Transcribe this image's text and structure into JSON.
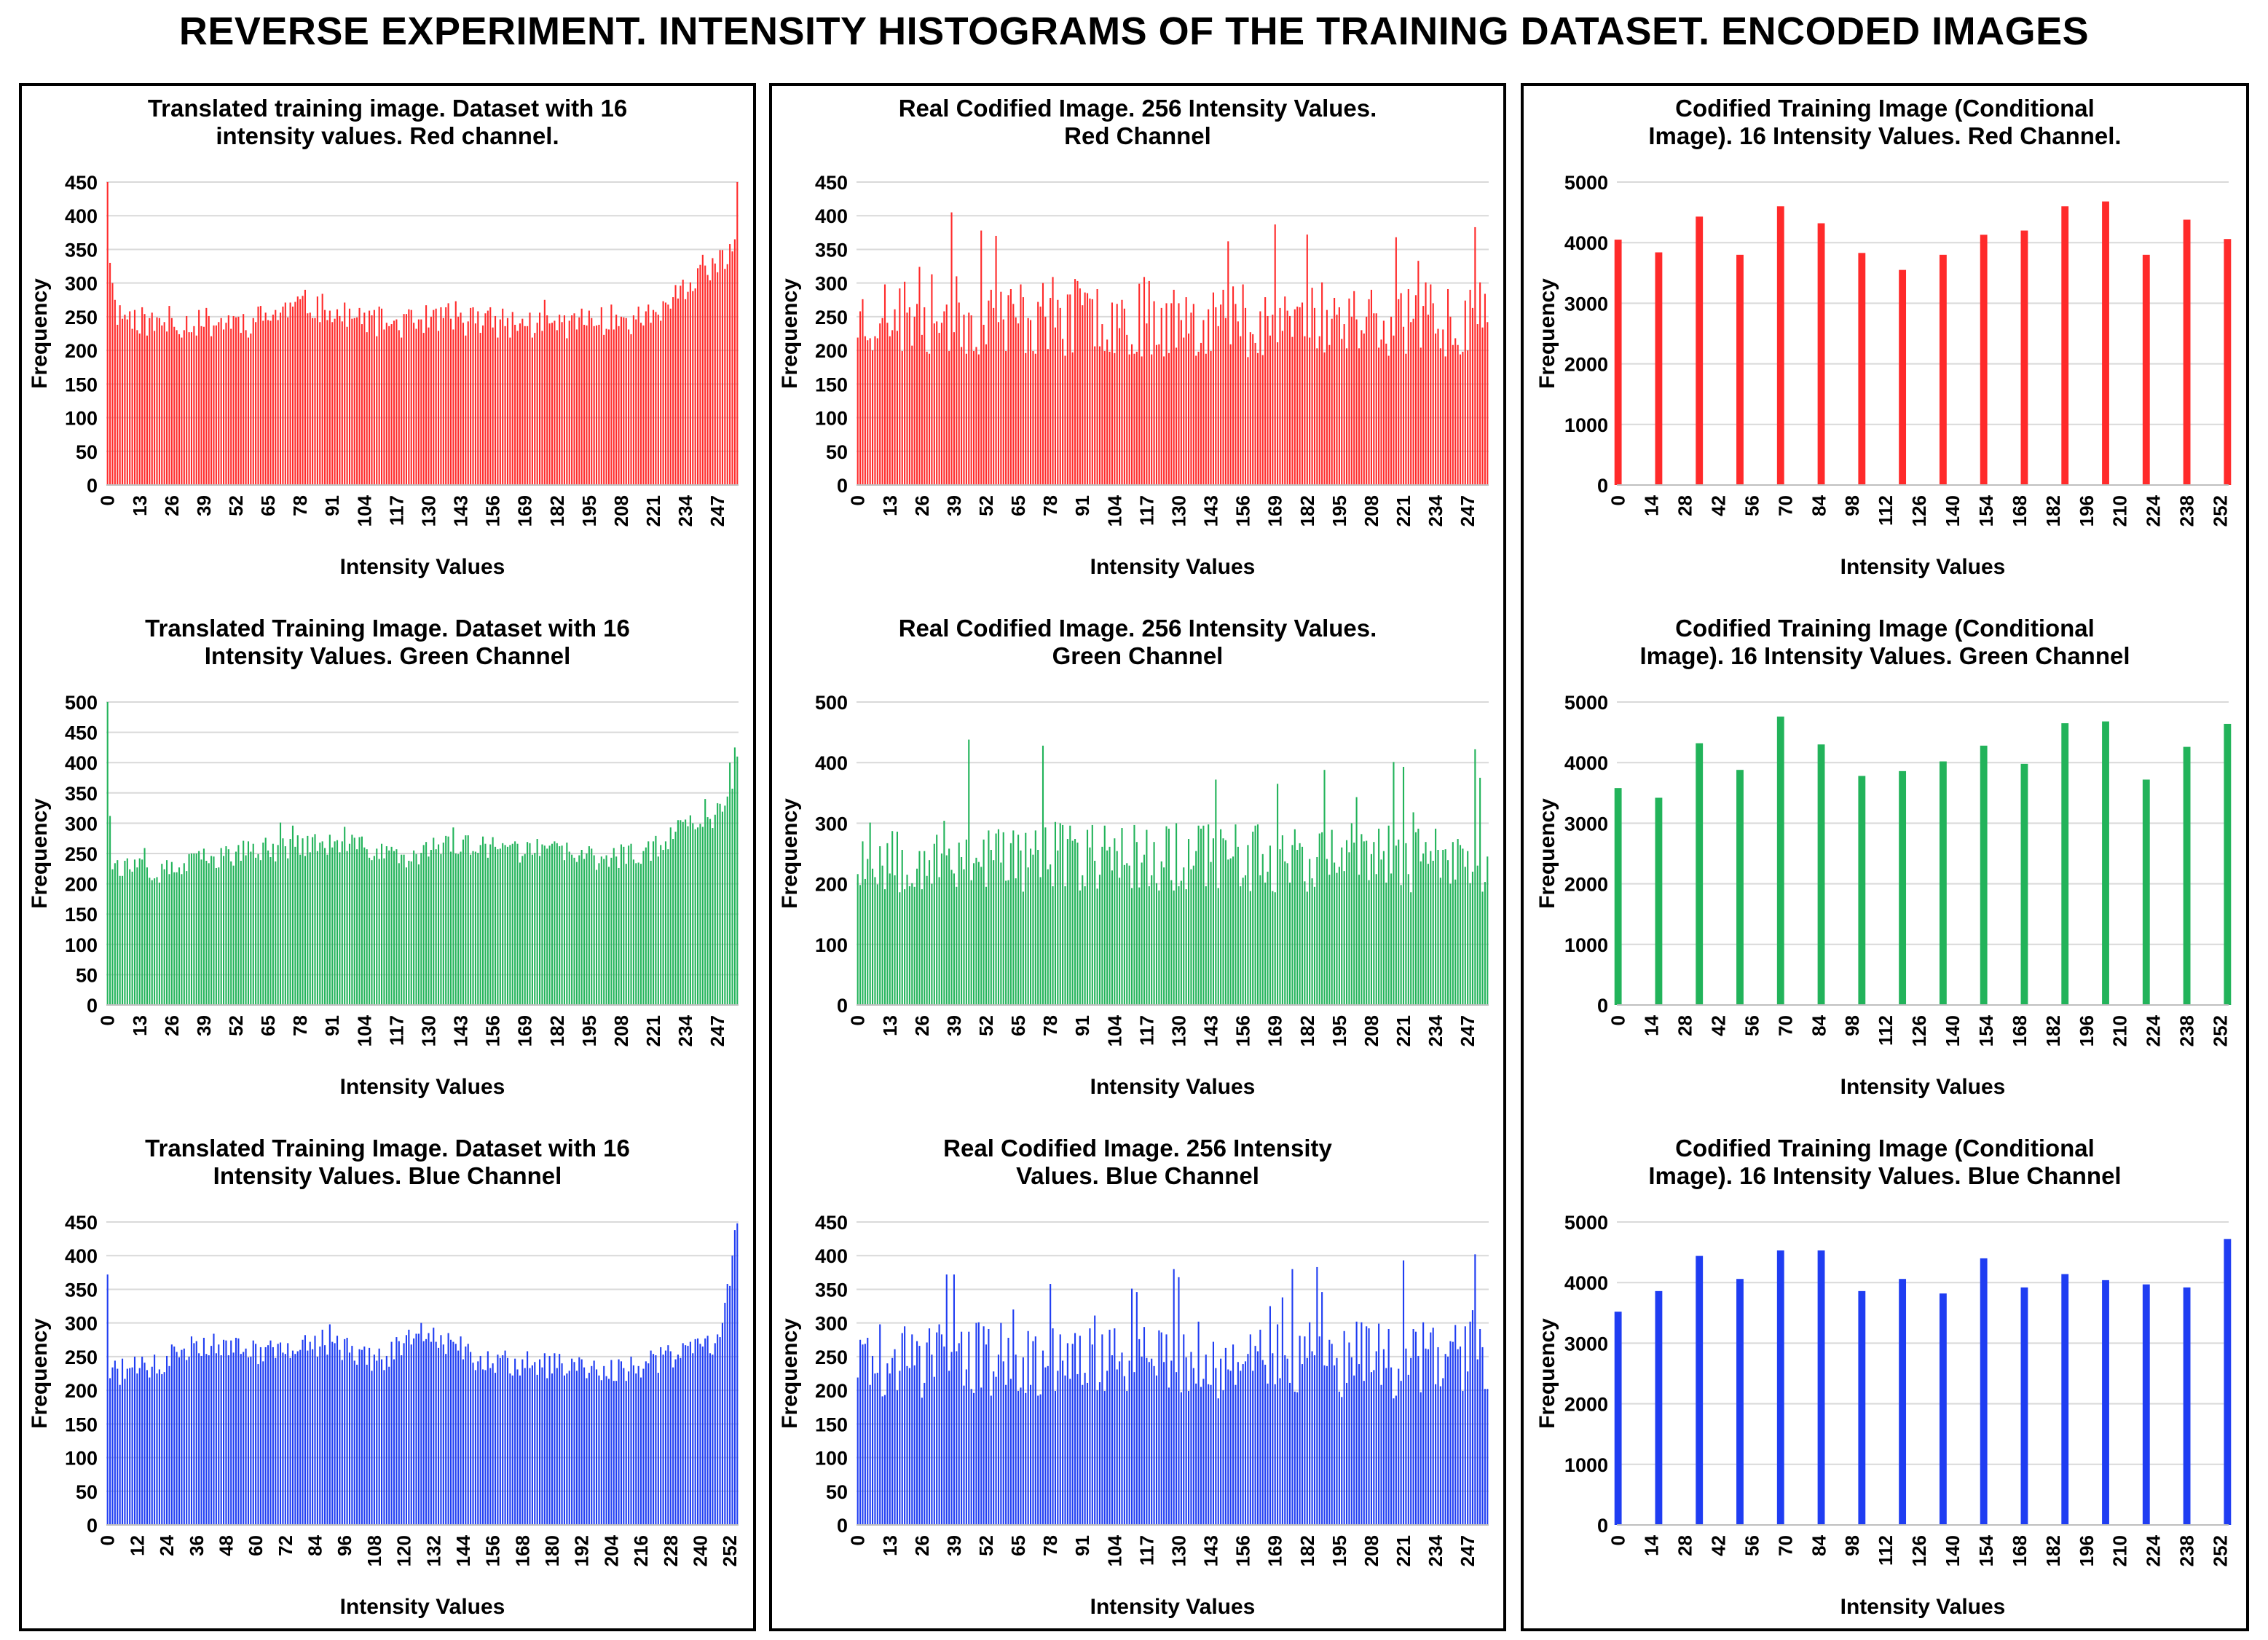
{
  "page_title": "REVERSE EXPERIMENT. INTENSITY HISTOGRAMS OF THE TRAINING DATASET. ENCODED IMAGES",
  "colors": {
    "red": "#ff2a2a",
    "green": "#22b35a",
    "blue": "#1f3df2",
    "grid": "#d9d9d9",
    "frame": "#000000"
  },
  "chart_data": [
    {
      "id": "red-16",
      "type": "bar",
      "color": "red",
      "title": [
        "Translated training image. Dataset with 16",
        "intensity values. Red channel."
      ],
      "xlabel": "Intensity Values",
      "ylabel": "Frequency",
      "ylim": [
        0,
        450
      ],
      "yticks": [
        0,
        50,
        100,
        150,
        200,
        250,
        300,
        350,
        400,
        450
      ],
      "xticks": [
        0,
        13,
        26,
        39,
        52,
        65,
        78,
        91,
        104,
        117,
        130,
        143,
        156,
        169,
        182,
        195,
        208,
        221,
        234,
        247
      ],
      "x_start": 0,
      "x_count": 256,
      "trend": [
        [
          0,
          260
        ],
        [
          20,
          238
        ],
        [
          40,
          242
        ],
        [
          60,
          245
        ],
        [
          80,
          268
        ],
        [
          100,
          245
        ],
        [
          120,
          240
        ],
        [
          140,
          252
        ],
        [
          160,
          240
        ],
        [
          180,
          238
        ],
        [
          200,
          245
        ],
        [
          220,
          250
        ],
        [
          235,
          290
        ],
        [
          245,
          320
        ],
        [
          255,
          350
        ]
      ],
      "spread": 45,
      "seed": 11,
      "overrides": [
        [
          0,
          450
        ],
        [
          1,
          330
        ],
        [
          2,
          300
        ],
        [
          3,
          275
        ],
        [
          254,
          365
        ],
        [
          255,
          450
        ]
      ]
    },
    {
      "id": "red-256",
      "type": "bar",
      "color": "red",
      "title": [
        "Real Codified Image. 256 Intensity Values.",
        "Red Channel"
      ],
      "xlabel": "Intensity Values",
      "ylabel": "Frequency",
      "ylim": [
        0,
        450
      ],
      "yticks": [
        0,
        50,
        100,
        150,
        200,
        250,
        300,
        350,
        400,
        450
      ],
      "xticks": [
        0,
        13,
        26,
        39,
        52,
        65,
        78,
        91,
        104,
        117,
        130,
        143,
        156,
        169,
        182,
        195,
        208,
        221,
        234,
        247
      ],
      "x_start": 0,
      "x_count": 256,
      "trend": [
        [
          0,
          250
        ],
        [
          255,
          250
        ]
      ],
      "spread": 120,
      "seed": 23,
      "overrides": [
        [
          38,
          405
        ],
        [
          50,
          378
        ],
        [
          150,
          362
        ],
        [
          182,
          372
        ],
        [
          218,
          368
        ],
        [
          250,
          383
        ]
      ]
    },
    {
      "id": "red-cond",
      "type": "bar",
      "color": "red",
      "title": [
        "Codified Training Image (Conditional",
        "Image). 16 Intensity Values. Red Channel."
      ],
      "xlabel": "Intensity Values",
      "ylabel": "Frequency",
      "ylim": [
        0,
        5000
      ],
      "yticks": [
        0,
        1000,
        2000,
        3000,
        4000,
        5000
      ],
      "xticks": [
        0,
        14,
        28,
        42,
        56,
        70,
        84,
        98,
        112,
        126,
        140,
        154,
        168,
        182,
        196,
        210,
        224,
        238,
        252
      ],
      "x_start": 0,
      "x_count": 256,
      "points": [
        [
          0,
          4050
        ],
        [
          17,
          3840
        ],
        [
          34,
          4430
        ],
        [
          51,
          3800
        ],
        [
          68,
          4600
        ],
        [
          85,
          4320
        ],
        [
          102,
          3830
        ],
        [
          119,
          3550
        ],
        [
          136,
          3800
        ],
        [
          153,
          4130
        ],
        [
          170,
          4200
        ],
        [
          187,
          4600
        ],
        [
          204,
          4680
        ],
        [
          221,
          3800
        ],
        [
          238,
          4380
        ],
        [
          255,
          4060
        ]
      ]
    },
    {
      "id": "green-16",
      "type": "bar",
      "color": "green",
      "title": [
        "Translated Training Image. Dataset with 16",
        "Intensity Values. Green Channel"
      ],
      "xlabel": "Intensity Values",
      "ylabel": "Frequency",
      "ylim": [
        0,
        500
      ],
      "yticks": [
        0,
        50,
        100,
        150,
        200,
        250,
        300,
        350,
        400,
        450,
        500
      ],
      "xticks": [
        0,
        13,
        26,
        39,
        52,
        65,
        78,
        91,
        104,
        117,
        130,
        143,
        156,
        169,
        182,
        195,
        208,
        221,
        234,
        247
      ],
      "x_start": 0,
      "x_count": 256,
      "trend": [
        [
          0,
          235
        ],
        [
          20,
          215
        ],
        [
          40,
          240
        ],
        [
          60,
          255
        ],
        [
          80,
          265
        ],
        [
          100,
          262
        ],
        [
          120,
          245
        ],
        [
          140,
          265
        ],
        [
          160,
          255
        ],
        [
          180,
          255
        ],
        [
          200,
          240
        ],
        [
          220,
          255
        ],
        [
          235,
          300
        ],
        [
          245,
          310
        ],
        [
          255,
          380
        ]
      ],
      "spread": 40,
      "seed": 37,
      "overrides": [
        [
          0,
          500
        ],
        [
          1,
          312
        ],
        [
          242,
          340
        ],
        [
          252,
          400
        ],
        [
          254,
          425
        ],
        [
          255,
          410
        ]
      ]
    },
    {
      "id": "green-256",
      "type": "bar",
      "color": "green",
      "title": [
        "Real Codified  Image. 256 Intensity Values.",
        "Green Channel"
      ],
      "xlabel": "Intensity Values",
      "ylabel": "Frequency",
      "ylim": [
        0,
        500
      ],
      "yticks": [
        0,
        100,
        200,
        300,
        400,
        500
      ],
      "xticks": [
        0,
        13,
        26,
        39,
        52,
        65,
        78,
        91,
        104,
        117,
        130,
        143,
        156,
        169,
        182,
        195,
        208,
        221,
        234,
        247
      ],
      "x_start": 0,
      "x_count": 256,
      "trend": [
        [
          0,
          245
        ],
        [
          255,
          245
        ]
      ],
      "spread": 120,
      "seed": 53,
      "overrides": [
        [
          45,
          438
        ],
        [
          75,
          428
        ],
        [
          145,
          372
        ],
        [
          170,
          365
        ],
        [
          189,
          388
        ],
        [
          221,
          393
        ],
        [
          250,
          422
        ]
      ]
    },
    {
      "id": "green-cond",
      "type": "bar",
      "color": "green",
      "title": [
        "Codified Training Image (Conditional",
        "Image). 16 Intensity Values. Green Channel"
      ],
      "xlabel": "Intensity Values",
      "ylabel": "Frequency",
      "ylim": [
        0,
        5000
      ],
      "yticks": [
        0,
        1000,
        2000,
        3000,
        4000,
        5000
      ],
      "xticks": [
        0,
        14,
        28,
        42,
        56,
        70,
        84,
        98,
        112,
        126,
        140,
        154,
        168,
        182,
        196,
        210,
        224,
        238,
        252
      ],
      "x_start": 0,
      "x_count": 256,
      "points": [
        [
          0,
          3580
        ],
        [
          17,
          3420
        ],
        [
          34,
          4320
        ],
        [
          51,
          3880
        ],
        [
          68,
          4760
        ],
        [
          85,
          4300
        ],
        [
          102,
          3780
        ],
        [
          119,
          3860
        ],
        [
          136,
          4020
        ],
        [
          153,
          4280
        ],
        [
          170,
          3980
        ],
        [
          187,
          4650
        ],
        [
          204,
          4680
        ],
        [
          221,
          3720
        ],
        [
          238,
          4260
        ],
        [
          255,
          4640
        ]
      ]
    },
    {
      "id": "blue-16",
      "type": "bar",
      "color": "blue",
      "title": [
        "Translated Training Image. Dataset with 16",
        "Intensity Values. Blue Channel"
      ],
      "xlabel": "Intensity Values",
      "ylabel": "Frequency",
      "ylim": [
        0,
        450
      ],
      "yticks": [
        0,
        50,
        100,
        150,
        200,
        250,
        300,
        350,
        400,
        450
      ],
      "xticks": [
        0,
        12,
        24,
        36,
        48,
        60,
        72,
        84,
        96,
        108,
        120,
        132,
        144,
        156,
        168,
        180,
        192,
        204,
        216,
        228,
        240,
        252
      ],
      "x_start": 0,
      "x_count": 256,
      "trend": [
        [
          0,
          225
        ],
        [
          20,
          235
        ],
        [
          35,
          272
        ],
        [
          60,
          258
        ],
        [
          90,
          268
        ],
        [
          110,
          245
        ],
        [
          130,
          290
        ],
        [
          150,
          245
        ],
        [
          170,
          240
        ],
        [
          190,
          232
        ],
        [
          210,
          230
        ],
        [
          230,
          250
        ],
        [
          245,
          272
        ],
        [
          255,
          320
        ]
      ],
      "spread": 40,
      "seed": 71,
      "overrides": [
        [
          0,
          372
        ],
        [
          1,
          218
        ],
        [
          249,
          300
        ],
        [
          250,
          330
        ],
        [
          251,
          358
        ],
        [
          252,
          355
        ],
        [
          253,
          400
        ],
        [
          254,
          438
        ],
        [
          255,
          448
        ]
      ]
    },
    {
      "id": "blue-256",
      "type": "bar",
      "color": "blue",
      "title": [
        "Real Codified Image. 256 Intensity",
        "Values. Blue Channel"
      ],
      "xlabel": "Intensity Values",
      "ylabel": "Frequency",
      "ylim": [
        0,
        450
      ],
      "yticks": [
        0,
        50,
        100,
        150,
        200,
        250,
        300,
        350,
        400,
        450
      ],
      "xticks": [
        0,
        13,
        26,
        39,
        52,
        65,
        78,
        91,
        104,
        117,
        130,
        143,
        156,
        169,
        182,
        195,
        208,
        221,
        234,
        247
      ],
      "x_start": 0,
      "x_count": 256,
      "trend": [
        [
          0,
          245
        ],
        [
          255,
          245
        ]
      ],
      "spread": 115,
      "seed": 89,
      "overrides": [
        [
          36,
          372
        ],
        [
          39,
          372
        ],
        [
          78,
          358
        ],
        [
          130,
          368
        ],
        [
          176,
          380
        ],
        [
          186,
          383
        ],
        [
          221,
          393
        ],
        [
          250,
          402
        ]
      ]
    },
    {
      "id": "blue-cond",
      "type": "bar",
      "color": "blue",
      "title": [
        "Codified Training Image (Conditional",
        "Image). 16 Intensity Values. Blue Channel"
      ],
      "xlabel": "Intensity Values",
      "ylabel": "Frequency",
      "ylim": [
        0,
        5000
      ],
      "yticks": [
        0,
        1000,
        2000,
        3000,
        4000,
        5000
      ],
      "xticks": [
        0,
        14,
        28,
        42,
        56,
        70,
        84,
        98,
        112,
        126,
        140,
        154,
        168,
        182,
        196,
        210,
        224,
        238,
        252
      ],
      "x_start": 0,
      "x_count": 256,
      "points": [
        [
          0,
          3520
        ],
        [
          17,
          3860
        ],
        [
          34,
          4440
        ],
        [
          51,
          4060
        ],
        [
          68,
          4530
        ],
        [
          85,
          4530
        ],
        [
          102,
          3860
        ],
        [
          119,
          4060
        ],
        [
          136,
          3820
        ],
        [
          153,
          4400
        ],
        [
          170,
          3920
        ],
        [
          187,
          4140
        ],
        [
          204,
          4040
        ],
        [
          221,
          3970
        ],
        [
          238,
          3920
        ],
        [
          255,
          4720
        ]
      ]
    }
  ]
}
